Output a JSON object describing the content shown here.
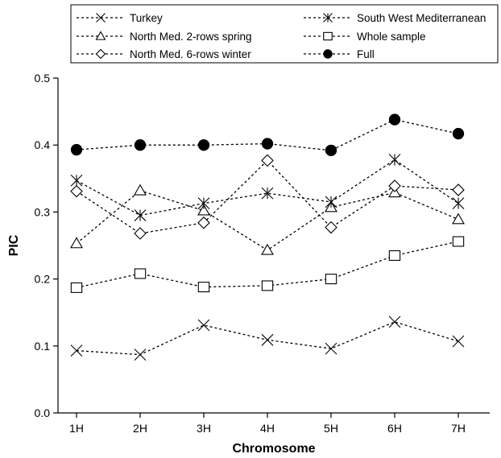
{
  "chart_data": {
    "type": "line",
    "title": "",
    "xlabel": "Chromosome",
    "ylabel": "PIC",
    "categories": [
      "1H",
      "2H",
      "3H",
      "4H",
      "5H",
      "6H",
      "7H"
    ],
    "ylim": [
      0.0,
      0.5
    ],
    "yticks": [
      "0.0",
      "0.1",
      "0.2",
      "0.3",
      "0.4",
      "0.5"
    ],
    "grid": false,
    "legend_position": "top",
    "series": [
      {
        "name": "Turkey",
        "marker": "x",
        "values": [
          0.093,
          0.087,
          0.131,
          0.109,
          0.096,
          0.136,
          0.107
        ]
      },
      {
        "name": "North Med. 2-rows spring",
        "marker": "triangle",
        "values": [
          0.253,
          0.332,
          0.302,
          0.243,
          0.307,
          0.329,
          0.289
        ]
      },
      {
        "name": "North Med. 6-rows winter",
        "marker": "diamond",
        "values": [
          0.331,
          0.268,
          0.284,
          0.377,
          0.277,
          0.339,
          0.333
        ]
      },
      {
        "name": "South West Mediterranean",
        "marker": "asterisk",
        "values": [
          0.347,
          0.295,
          0.313,
          0.328,
          0.315,
          0.378,
          0.313
        ]
      },
      {
        "name": "Whole sample",
        "marker": "square",
        "values": [
          0.187,
          0.208,
          0.188,
          0.19,
          0.2,
          0.235,
          0.256
        ]
      },
      {
        "name": "Full",
        "marker": "circle-filled",
        "values": [
          0.393,
          0.4,
          0.4,
          0.402,
          0.392,
          0.438,
          0.417
        ]
      }
    ]
  }
}
